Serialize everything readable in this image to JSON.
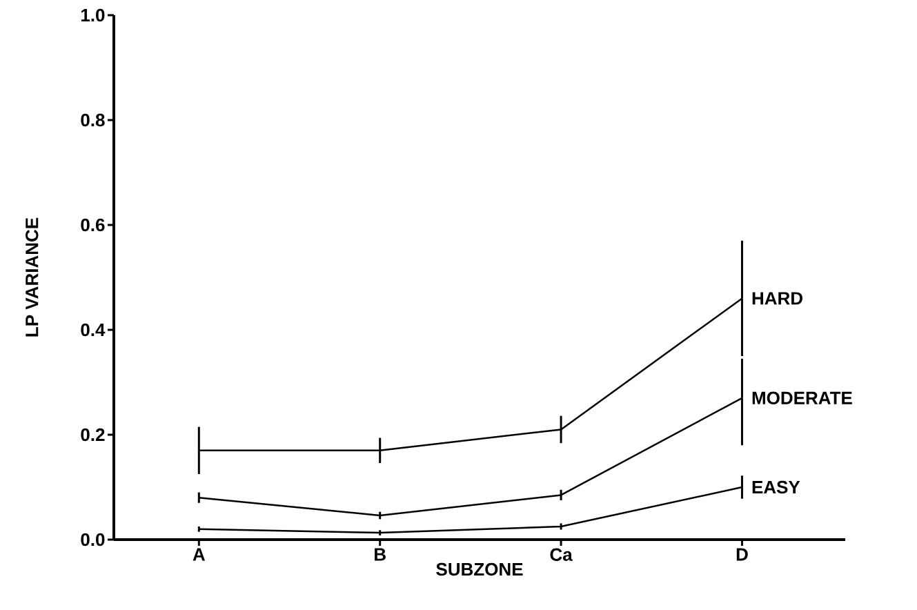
{
  "chart_data": {
    "type": "line",
    "xlabel": "SUBZONE",
    "ylabel": "LP VARIANCE",
    "series": [
      {
        "name": "HARD",
        "color": "#000000",
        "values": [
          0.17,
          0.17,
          0.21,
          0.46
        ],
        "errors": [
          0.045,
          0.024,
          0.026,
          0.11
        ]
      },
      {
        "name": "MODERATE",
        "color": "#000000",
        "values": [
          0.08,
          0.046,
          0.085,
          0.27
        ],
        "errors": [
          0.01,
          0.007,
          0.01,
          [
            0.18,
            0.345
          ]
        ]
      },
      {
        "name": "EASY",
        "color": "#000000",
        "values": [
          0.02,
          0.013,
          0.025,
          0.1
        ],
        "errors": [
          0.005,
          0.005,
          0.006,
          0.022
        ]
      }
    ],
    "categories": [
      "A",
      "B",
      "Ca",
      "D"
    ],
    "ylim": [
      0,
      1.0
    ],
    "yticks": [
      {
        "value": 0,
        "label": "0.0"
      },
      {
        "value": 0.2,
        "label": "0.2"
      },
      {
        "value": 0.4,
        "label": "0.4"
      },
      {
        "value": 0.6,
        "label": "0.6"
      },
      {
        "value": 0.8,
        "label": "0.8"
      },
      {
        "value": 1.0,
        "label": "1.0"
      }
    ],
    "grid": false,
    "marker": "none",
    "line_style": "solid"
  }
}
